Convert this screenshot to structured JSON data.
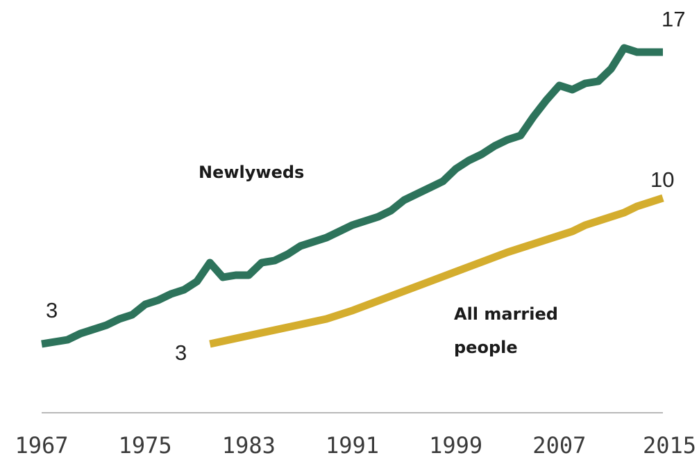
{
  "chart_data": {
    "type": "line",
    "title": "",
    "xlabel": "",
    "ylabel": "",
    "xlim": [
      1967,
      2015
    ],
    "ylim": [
      0,
      18
    ],
    "x_ticks": [
      "1967",
      "1975",
      "1983",
      "1991",
      "1999",
      "2007",
      "2015"
    ],
    "grid": false,
    "legend": "inline labels",
    "colors": {
      "newlyweds": "#2d735b",
      "all_married": "#d4ad2e",
      "axis": "#b8b8b8"
    },
    "series": [
      {
        "name": "Newlyweds",
        "label_lines": [
          "Newlyweds"
        ],
        "color": "#2d735b",
        "start_label": "3",
        "end_label": "17",
        "x": [
          1967,
          1968,
          1969,
          1970,
          1971,
          1972,
          1973,
          1974,
          1975,
          1976,
          1977,
          1978,
          1979,
          1980,
          1981,
          1982,
          1983,
          1984,
          1985,
          1986,
          1987,
          1988,
          1989,
          1990,
          1991,
          1992,
          1993,
          1994,
          1995,
          1996,
          1997,
          1998,
          1999,
          2000,
          2001,
          2002,
          2003,
          2004,
          2005,
          2006,
          2007,
          2008,
          2009,
          2010,
          2011,
          2012,
          2013,
          2014,
          2015
        ],
        "values": [
          3.0,
          3.1,
          3.2,
          3.5,
          3.7,
          3.9,
          4.2,
          4.4,
          4.9,
          5.1,
          5.4,
          5.6,
          6.0,
          6.9,
          6.2,
          6.3,
          6.3,
          6.9,
          7.0,
          7.3,
          7.7,
          7.9,
          8.1,
          8.4,
          8.7,
          8.9,
          9.1,
          9.4,
          9.9,
          10.2,
          10.5,
          10.8,
          11.4,
          11.8,
          12.1,
          12.5,
          12.8,
          13.0,
          13.9,
          14.7,
          15.4,
          15.2,
          15.5,
          15.6,
          16.2,
          17.2,
          17.0,
          17.0,
          17.0
        ]
      },
      {
        "name": "All married people",
        "label_lines": [
          "All married",
          "people"
        ],
        "color": "#d4ad2e",
        "start_label": "3",
        "end_label": "10",
        "x": [
          1980,
          1983,
          1986,
          1989,
          1991,
          1994,
          1997,
          2000,
          2003,
          2006,
          2008,
          2009,
          2010,
          2011,
          2012,
          2013,
          2014,
          2015
        ],
        "values": [
          3.0,
          3.4,
          3.8,
          4.2,
          4.6,
          5.3,
          6.0,
          6.7,
          7.4,
          8.0,
          8.4,
          8.7,
          8.9,
          9.1,
          9.3,
          9.6,
          9.8,
          10.0
        ]
      }
    ]
  }
}
